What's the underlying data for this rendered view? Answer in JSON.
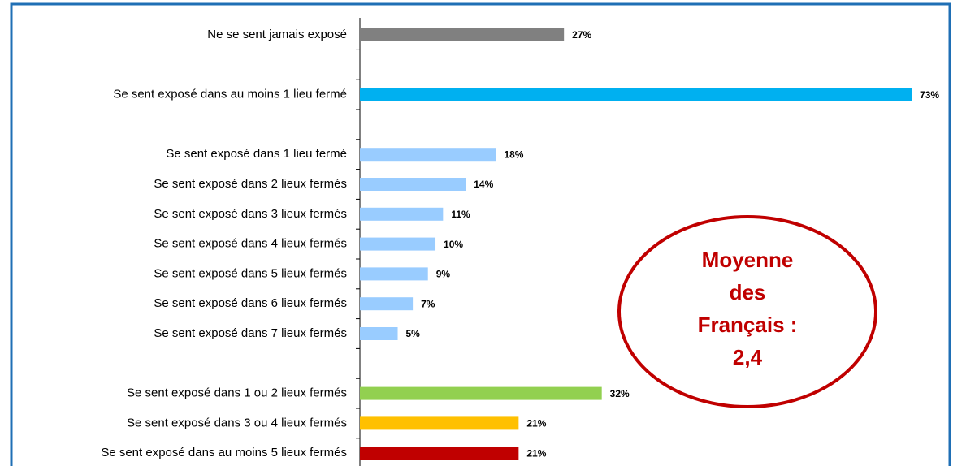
{
  "chart_data": {
    "type": "barh",
    "categories": [
      "Ne se sent jamais exposé",
      null,
      "Se sent exposé dans au moins 1 lieu fermé",
      null,
      "Se sent exposé dans 1 lieu fermé",
      "Se sent exposé dans 2 lieux fermés",
      "Se sent exposé dans 3 lieux fermés",
      "Se sent exposé dans 4 lieux fermés",
      "Se sent exposé dans 5 lieux fermés",
      "Se sent exposé dans 6 lieux fermés",
      "Se sent exposé dans 7 lieux fermés",
      null,
      "Se sent exposé dans 1 ou 2 lieux fermés",
      "Se sent exposé dans 3 ou 4 lieux fermés",
      "Se sent exposé dans au moins 5 lieux fermés"
    ],
    "values": [
      27,
      null,
      73,
      null,
      18,
      14,
      11,
      10,
      9,
      7,
      5,
      null,
      32,
      21,
      21
    ],
    "value_labels": [
      "27%",
      null,
      "73%",
      null,
      "18%",
      "14%",
      "11%",
      "10%",
      "9%",
      "7%",
      "5%",
      null,
      "32%",
      "21%",
      "21%"
    ],
    "colors": [
      "#808080",
      null,
      "#00b0f0",
      null,
      "#99ccff",
      "#99ccff",
      "#99ccff",
      "#99ccff",
      "#99ccff",
      "#99ccff",
      "#99ccff",
      null,
      "#92d050",
      "#ffc000",
      "#c00000"
    ],
    "xlim": [
      0,
      76
    ],
    "annotation": [
      "Moyenne",
      "des",
      "Français :",
      "2,4"
    ],
    "annotation_color": "#c00000"
  }
}
